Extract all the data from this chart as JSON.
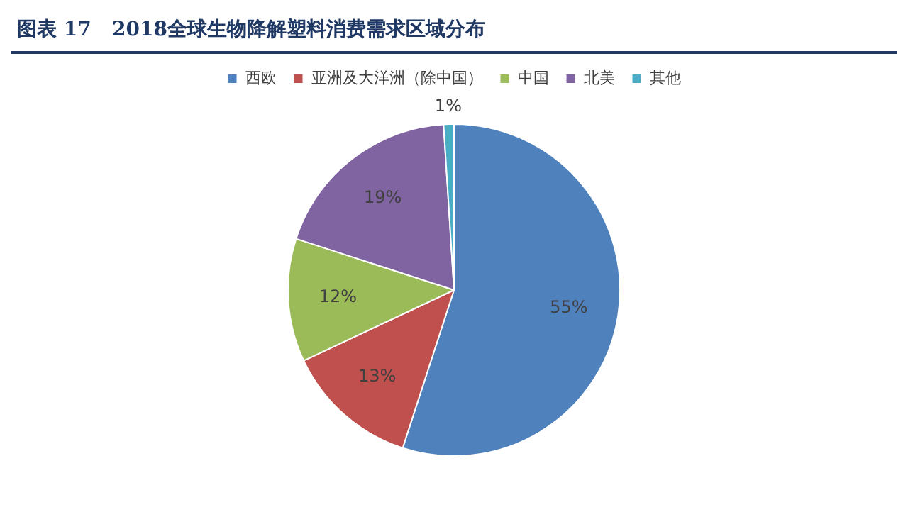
{
  "chart_data": {
    "type": "pie",
    "title": "图表 17   2018全球生物降解塑料消费需求区域分布",
    "categories": [
      "西欧",
      "亚洲及大洋洲（除中国）",
      "中国",
      "北美",
      "其他"
    ],
    "values": [
      55,
      13,
      12,
      19,
      1
    ],
    "colors": [
      "#4f81bd",
      "#c0504d",
      "#9bbb59",
      "#8064a2",
      "#4bacc6"
    ],
    "value_labels": [
      "55%",
      "13%",
      "12%",
      "19%",
      "1%"
    ],
    "legend": "top"
  }
}
